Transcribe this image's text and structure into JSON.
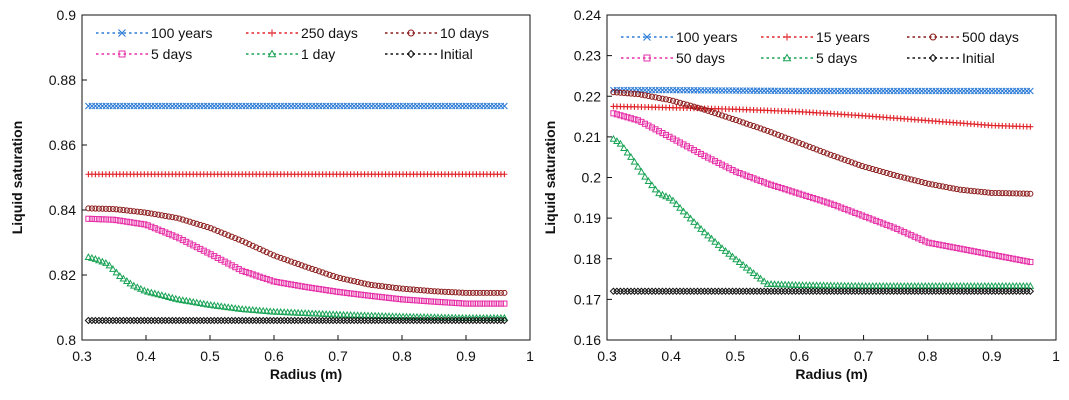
{
  "chart_data": [
    {
      "type": "scatter",
      "title": "",
      "xlabel": "Radius (m)",
      "ylabel": "Liquid saturation",
      "xlim": [
        0.3,
        1
      ],
      "ylim": [
        0.8,
        0.9
      ],
      "x_ticks": [
        "0.3",
        "0.4",
        "0.5",
        "0.6",
        "0.7",
        "0.8",
        "0.9",
        "1"
      ],
      "y_ticks": [
        "0.8",
        "0.82",
        "0.84",
        "0.86",
        "0.88",
        "0.9"
      ],
      "grid": false,
      "legend_position": "top",
      "series": [
        {
          "name": "100 years",
          "color": "#2b7bd6",
          "marker": "x",
          "x": [
            0.31,
            0.4,
            0.5,
            0.6,
            0.7,
            0.8,
            0.9,
            0.96
          ],
          "y": [
            0.872,
            0.872,
            0.872,
            0.872,
            0.872,
            0.872,
            0.872,
            0.872
          ]
        },
        {
          "name": "250 days",
          "color": "#e0242a",
          "marker": "plus",
          "x": [
            0.31,
            0.4,
            0.5,
            0.6,
            0.7,
            0.8,
            0.9,
            0.96
          ],
          "y": [
            0.851,
            0.851,
            0.851,
            0.851,
            0.851,
            0.851,
            0.851,
            0.851
          ]
        },
        {
          "name": "10 days",
          "color": "#8b1a1a",
          "marker": "circle",
          "x": [
            0.31,
            0.35,
            0.4,
            0.45,
            0.5,
            0.55,
            0.6,
            0.65,
            0.7,
            0.75,
            0.8,
            0.85,
            0.9,
            0.96
          ],
          "y": [
            0.8405,
            0.8403,
            0.8392,
            0.8375,
            0.8345,
            0.8305,
            0.826,
            0.8225,
            0.8192,
            0.817,
            0.8158,
            0.815,
            0.8145,
            0.8145
          ]
        },
        {
          "name": "5 days",
          "color": "#e62ea6",
          "marker": "square",
          "x": [
            0.31,
            0.35,
            0.4,
            0.45,
            0.5,
            0.55,
            0.6,
            0.65,
            0.7,
            0.75,
            0.8,
            0.85,
            0.9,
            0.96
          ],
          "y": [
            0.8373,
            0.837,
            0.8355,
            0.8315,
            0.8265,
            0.8213,
            0.818,
            0.8163,
            0.8148,
            0.8136,
            0.8125,
            0.8118,
            0.8112,
            0.8112
          ]
        },
        {
          "name": "1 day",
          "color": "#19a355",
          "marker": "triangle",
          "x": [
            0.31,
            0.32,
            0.34,
            0.36,
            0.38,
            0.4,
            0.45,
            0.5,
            0.55,
            0.6,
            0.7,
            0.8,
            0.9,
            0.96
          ],
          "y": [
            0.8255,
            0.825,
            0.8235,
            0.8195,
            0.8168,
            0.815,
            0.8125,
            0.8108,
            0.8095,
            0.8087,
            0.8078,
            0.8072,
            0.8068,
            0.8068
          ]
        },
        {
          "name": "Initial",
          "color": "#111111",
          "marker": "diamond",
          "x": [
            0.31,
            0.4,
            0.5,
            0.6,
            0.7,
            0.8,
            0.9,
            0.96
          ],
          "y": [
            0.806,
            0.806,
            0.806,
            0.806,
            0.806,
            0.806,
            0.806,
            0.806
          ]
        }
      ]
    },
    {
      "type": "scatter",
      "title": "",
      "xlabel": "Radius (m)",
      "ylabel": "Liquid saturation",
      "xlim": [
        0.3,
        1
      ],
      "ylim": [
        0.16,
        0.24
      ],
      "x_ticks": [
        "0.3",
        "0.4",
        "0.5",
        "0.6",
        "0.7",
        "0.8",
        "0.9",
        "1"
      ],
      "y_ticks": [
        "0.16",
        "0.17",
        "0.18",
        "0.19",
        "0.2",
        "0.21",
        "0.22",
        "0.23",
        "0.24"
      ],
      "grid": false,
      "legend_position": "top",
      "series": [
        {
          "name": "100 years",
          "color": "#2b7bd6",
          "marker": "x",
          "x": [
            0.31,
            0.4,
            0.5,
            0.6,
            0.7,
            0.8,
            0.9,
            0.96
          ],
          "y": [
            0.2215,
            0.2215,
            0.2214,
            0.2213,
            0.2213,
            0.2213,
            0.2213,
            0.2213
          ]
        },
        {
          "name": "15 years",
          "color": "#e0242a",
          "marker": "plus",
          "x": [
            0.31,
            0.4,
            0.5,
            0.6,
            0.7,
            0.8,
            0.9,
            0.96
          ],
          "y": [
            0.2175,
            0.2172,
            0.2168,
            0.2162,
            0.2152,
            0.214,
            0.2128,
            0.2125
          ]
        },
        {
          "name": "500 days",
          "color": "#8b1a1a",
          "marker": "circle",
          "x": [
            0.31,
            0.35,
            0.4,
            0.45,
            0.5,
            0.55,
            0.6,
            0.65,
            0.7,
            0.75,
            0.8,
            0.85,
            0.9,
            0.96
          ],
          "y": [
            0.221,
            0.2205,
            0.219,
            0.2168,
            0.2142,
            0.2115,
            0.2085,
            0.2055,
            0.2027,
            0.2005,
            0.1985,
            0.197,
            0.1962,
            0.196
          ]
        },
        {
          "name": "50 days",
          "color": "#e62ea6",
          "marker": "square",
          "x": [
            0.31,
            0.35,
            0.4,
            0.45,
            0.5,
            0.55,
            0.6,
            0.65,
            0.7,
            0.75,
            0.8,
            0.85,
            0.9,
            0.96
          ],
          "y": [
            0.2158,
            0.214,
            0.2098,
            0.2055,
            0.2015,
            0.1985,
            0.196,
            0.1935,
            0.1905,
            0.1875,
            0.184,
            0.1825,
            0.181,
            0.1792
          ]
        },
        {
          "name": "5 days",
          "color": "#19a355",
          "marker": "triangle",
          "x": [
            0.31,
            0.32,
            0.34,
            0.36,
            0.38,
            0.4,
            0.42,
            0.45,
            0.48,
            0.5,
            0.52,
            0.55,
            0.6,
            0.7,
            0.8,
            0.9,
            0.96
          ],
          "y": [
            0.2095,
            0.2085,
            0.2045,
            0.2,
            0.1962,
            0.1948,
            0.1915,
            0.1868,
            0.1825,
            0.18,
            0.1775,
            0.1738,
            0.1735,
            0.1733,
            0.1733,
            0.1733,
            0.1733
          ]
        },
        {
          "name": "Initial",
          "color": "#111111",
          "marker": "diamond",
          "x": [
            0.31,
            0.4,
            0.5,
            0.6,
            0.7,
            0.8,
            0.9,
            0.96
          ],
          "y": [
            0.172,
            0.172,
            0.172,
            0.172,
            0.172,
            0.172,
            0.172,
            0.172
          ]
        }
      ]
    }
  ]
}
